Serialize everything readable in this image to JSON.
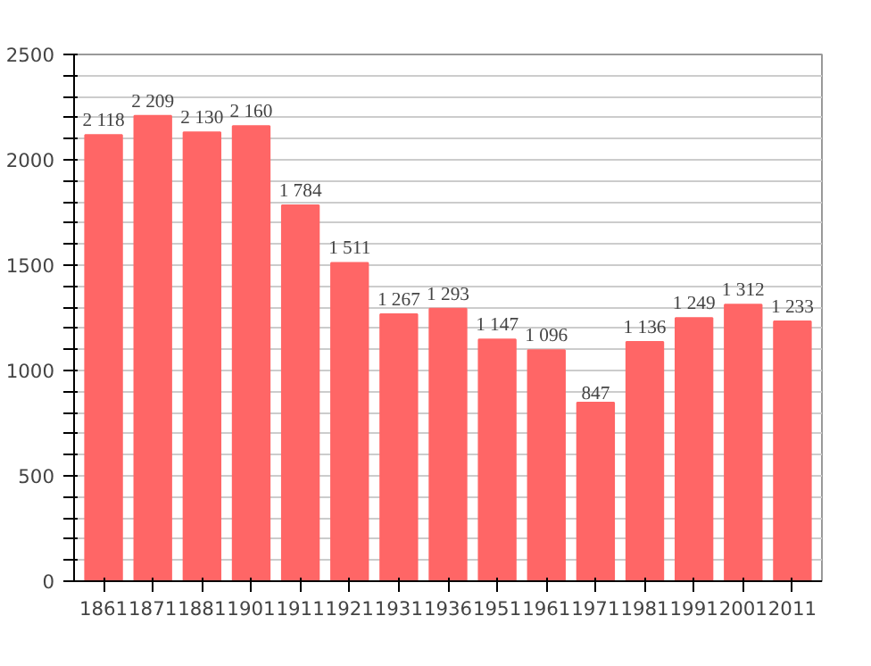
{
  "chart_data": {
    "type": "bar",
    "categories": [
      "1861",
      "1871",
      "1881",
      "1901",
      "1911",
      "1921",
      "1931",
      "1936",
      "1951",
      "1961",
      "1971",
      "1981",
      "1991",
      "2001",
      "2011"
    ],
    "values": [
      2118,
      2209,
      2130,
      2160,
      1784,
      1511,
      1267,
      1293,
      1147,
      1096,
      847,
      1136,
      1249,
      1312,
      1233
    ],
    "value_labels": [
      "2 118",
      "2 209",
      "2 130",
      "2 160",
      "1 784",
      "1 511",
      "1 267",
      "1 293",
      "1 147",
      "1 096",
      "847",
      "1 136",
      "1 249",
      "1 312",
      "1 233"
    ],
    "color": "#ff6666",
    "ylim": [
      0,
      2500
    ],
    "yticks": [
      0,
      {
        "value": 100,
        "label": null
      },
      {
        "value": 200,
        "label": null
      },
      {
        "value": 300,
        "label": null
      },
      {
        "value": 400,
        "label": null
      },
      500,
      {
        "value": 600,
        "label": null
      },
      {
        "value": 700,
        "label": null
      },
      {
        "value": 800,
        "label": null
      },
      {
        "value": 900,
        "label": null
      },
      1000,
      {
        "value": 1100,
        "label": null
      },
      {
        "value": 1200,
        "label": null
      },
      {
        "value": 1300,
        "label": null
      },
      {
        "value": 1400,
        "label": null
      },
      1500,
      {
        "value": 1600,
        "label": null
      },
      {
        "value": 1700,
        "label": null
      },
      {
        "value": 1800,
        "label": null
      },
      {
        "value": 1900,
        "label": null
      },
      2000,
      {
        "value": 2100,
        "label": null
      },
      {
        "value": 2200,
        "label": null
      },
      {
        "value": 2300,
        "label": null
      },
      {
        "value": 2400,
        "label": null
      },
      2500
    ],
    "grid": "y"
  }
}
